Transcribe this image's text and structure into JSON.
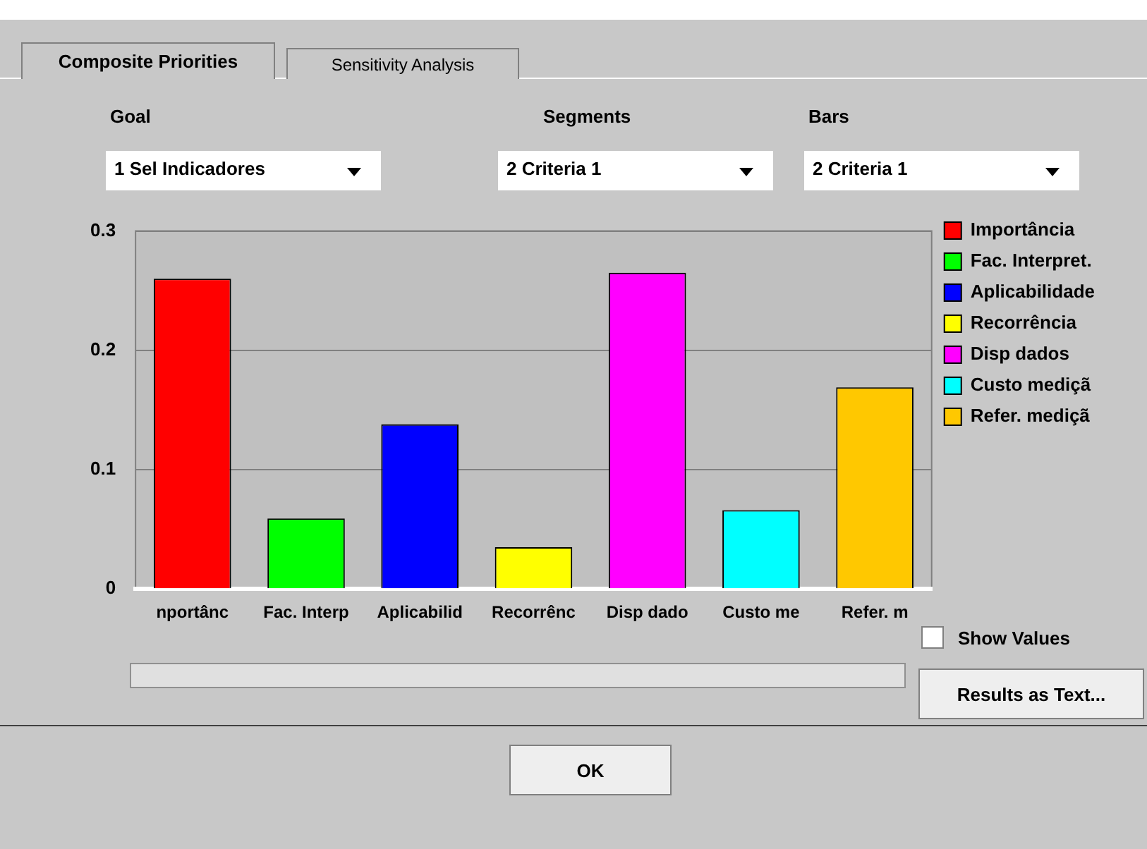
{
  "chart_data": {
    "type": "bar",
    "categories": [
      "nportânc",
      "Fac. Interp",
      "Aplicabilid",
      "Recorrênc",
      "Disp dado",
      "Custo me",
      "Refer. m"
    ],
    "series": [
      {
        "name": "Importância",
        "color": "#ff0000",
        "values": [
          0.26,
          null,
          null,
          null,
          null,
          null,
          null
        ]
      },
      {
        "name": "Fac. Interpret.",
        "color": "#00ff00",
        "values": [
          null,
          0.059,
          null,
          null,
          null,
          null,
          null
        ]
      },
      {
        "name": "Aplicabilidade",
        "color": "#0000ff",
        "values": [
          null,
          null,
          0.138,
          null,
          null,
          null,
          null
        ]
      },
      {
        "name": "Recorrência",
        "color": "#ffff00",
        "values": [
          null,
          null,
          null,
          0.035,
          null,
          null,
          null
        ]
      },
      {
        "name": "Disp dados",
        "color": "#ff00ff",
        "values": [
          null,
          null,
          null,
          null,
          0.265,
          null,
          null
        ]
      },
      {
        "name": "Custo mediçã",
        "color": "#00ffff",
        "values": [
          null,
          null,
          null,
          null,
          null,
          0.066,
          null
        ]
      },
      {
        "name": "Refer. mediçã",
        "color": "#ffc800",
        "values": [
          null,
          null,
          null,
          null,
          null,
          null,
          0.169
        ]
      }
    ],
    "ylim": [
      0,
      0.3
    ],
    "yticks": [
      0,
      0.1,
      0.2,
      0.3
    ],
    "grid": "y",
    "legend": "right",
    "annotations": [
      "Composite Priorities",
      "Sensitivity Analysis",
      "Goal",
      "Segments",
      "Bars",
      "1 Sel Indicadores",
      "2 Criteria 1",
      "2 Criteria 1",
      "Show Values",
      "Results as Text...",
      "OK"
    ]
  }
}
